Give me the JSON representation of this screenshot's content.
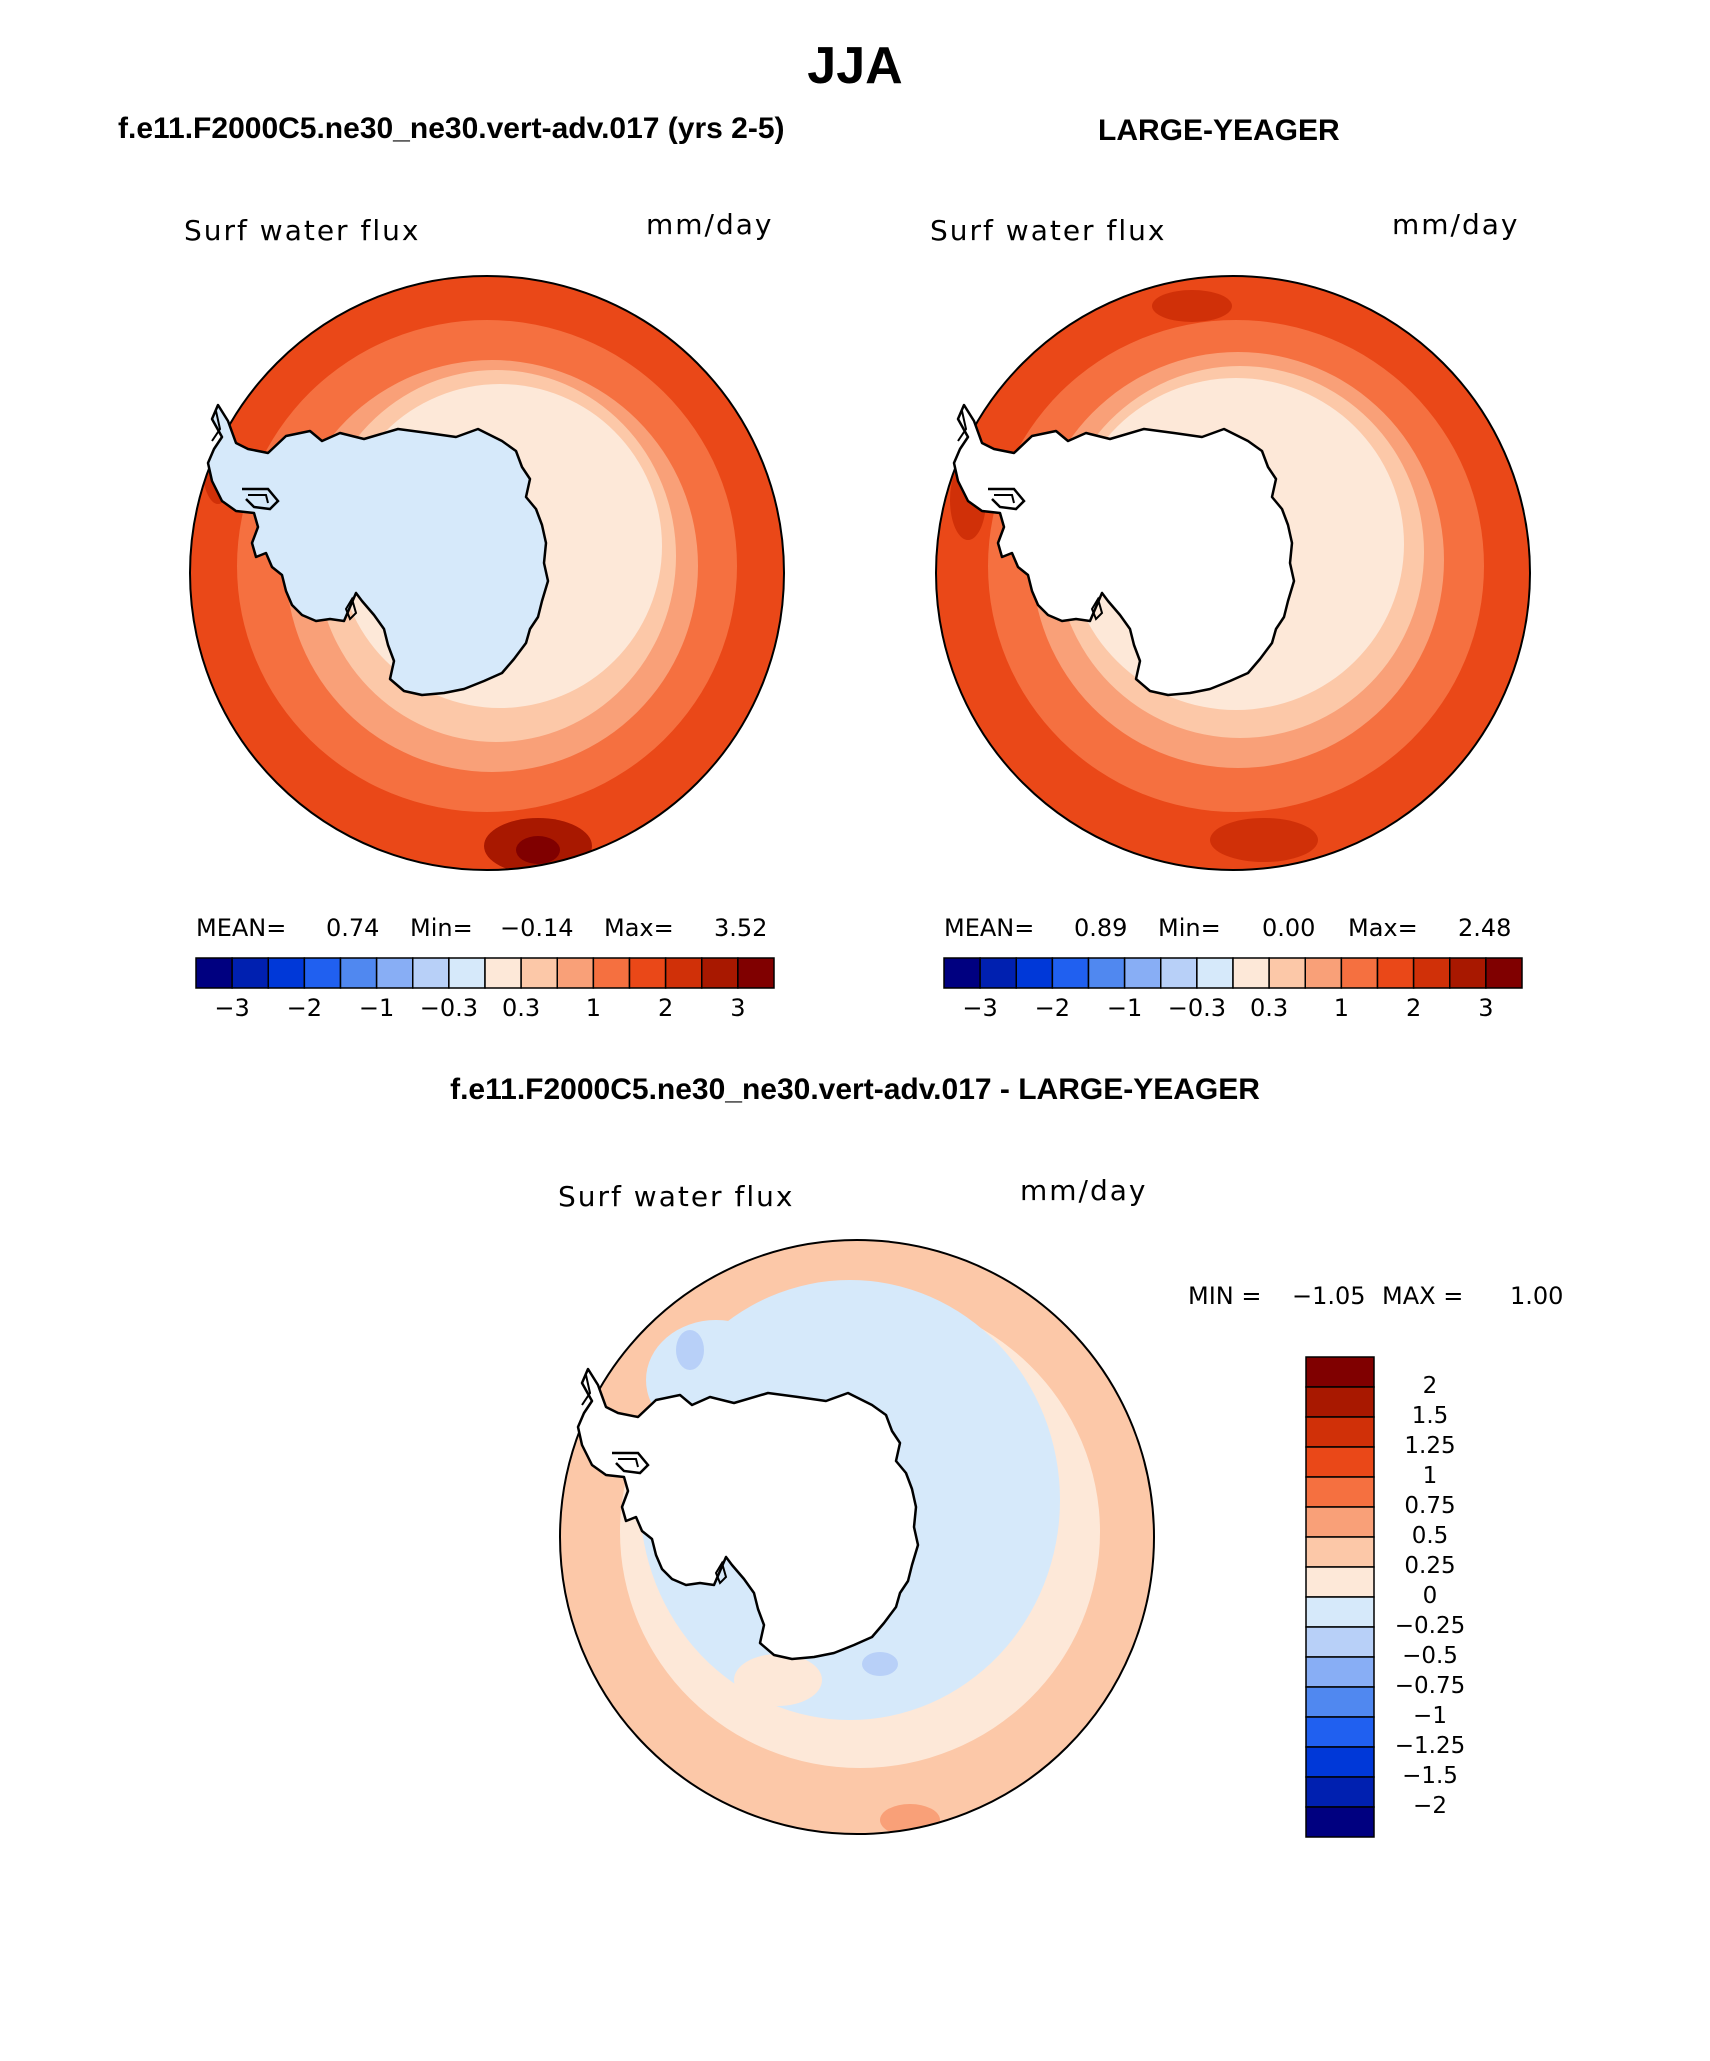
{
  "figure": {
    "season": "JJA",
    "left_case": "f.e11.F2000C5.ne30_ne30.vert-adv.017 (yrs 2-5)",
    "right_case": "LARGE-YEAGER",
    "diff_title": "f.e11.F2000C5.ne30_ne30.vert-adv.017 - LARGE-YEAGER"
  },
  "colors": {
    "continent_left": "#d6e9fa",
    "continent_right": "#ffffff",
    "coastline": "#000000",
    "abs_palette": [
      "#000080",
      "#0020b0",
      "#0038d8",
      "#2060f0",
      "#5088f0",
      "#88aef5",
      "#b8d0f8",
      "#d6e9fa",
      "#fde8d8",
      "#fcc8a8",
      "#f9a078",
      "#f57040",
      "#ea4818",
      "#d03008",
      "#a81800",
      "#800000"
    ],
    "diff_palette": [
      "#000080",
      "#0020b0",
      "#0038d8",
      "#2060f0",
      "#5088f0",
      "#88aef5",
      "#b8d0f8",
      "#d6e9fa",
      "#fde8d8",
      "#fcc8a8",
      "#f9a078",
      "#f57040",
      "#ea4818",
      "#d03008",
      "#a81800",
      "#800000"
    ]
  },
  "panels": {
    "left": {
      "variable": "Surf water flux",
      "units": "mm/day",
      "mean_label": "MEAN=",
      "mean": "0.74",
      "min_label": "Min=",
      "min": "−0.14",
      "max_label": "Max=",
      "max": "3.52"
    },
    "right": {
      "variable": "Surf water flux",
      "units": "mm/day",
      "mean_label": "MEAN=",
      "mean": "0.89",
      "min_label": "Min=",
      "min": "0.00",
      "max_label": "Max=",
      "max": "2.48"
    },
    "diff": {
      "variable": "Surf water flux",
      "units": "mm/day",
      "min_label": "MIN =",
      "min": "−1.05",
      "max_label": "MAX =",
      "max": "1.00"
    }
  },
  "abs_colorbar_ticks": [
    "−3",
    "−2",
    "−1",
    "−0.3",
    "0.3",
    "1",
    "2",
    "3"
  ],
  "diff_colorbar_ticks": [
    "2",
    "1.5",
    "1.25",
    "1",
    "0.75",
    "0.5",
    "0.25",
    "0",
    "−0.25",
    "−0.5",
    "−0.75",
    "−1",
    "−1.25",
    "−1.5",
    "−2"
  ]
}
